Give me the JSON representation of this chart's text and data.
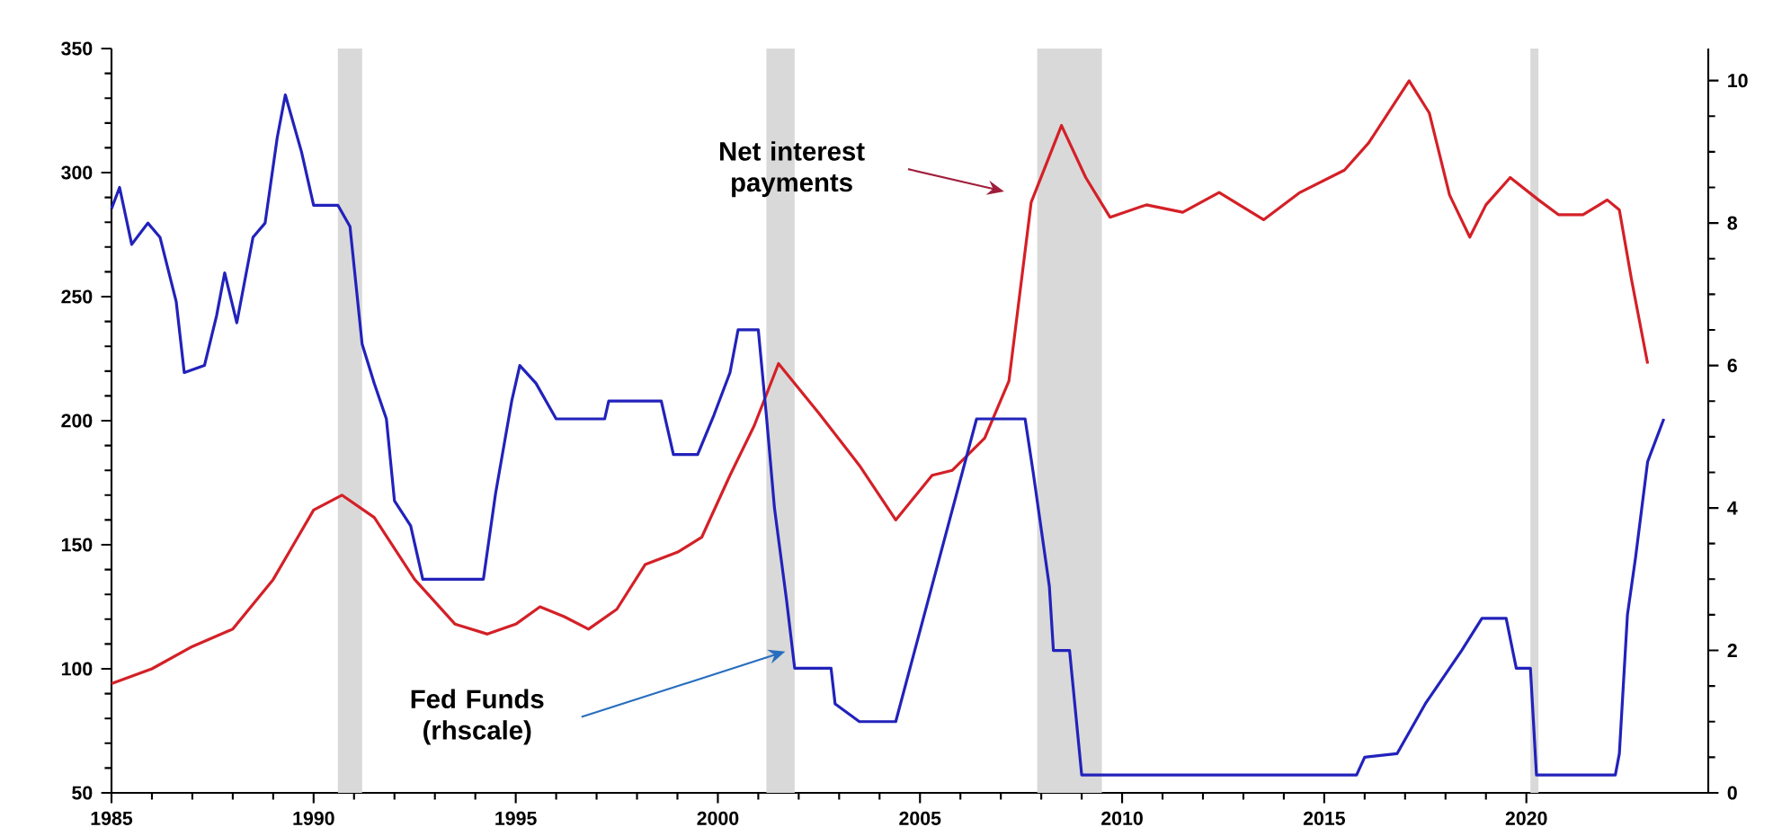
{
  "chart_data": {
    "type": "line",
    "xlim": [
      1985,
      2024.5
    ],
    "xticks": [
      1985,
      1990,
      1995,
      2000,
      2005,
      2010,
      2015,
      2020
    ],
    "ylim": [
      50,
      350
    ],
    "yticks": [
      50,
      100,
      150,
      200,
      250,
      300,
      350
    ],
    "y2lim": [
      0,
      10.45
    ],
    "y2ticks": [
      0,
      2,
      4,
      6,
      8,
      10
    ],
    "bands": [
      {
        "axis": "x",
        "from": 1990.6,
        "to": 1991.2,
        "color": "#d9d9d9"
      },
      {
        "axis": "x",
        "from": 2001.2,
        "to": 2001.9,
        "color": "#d9d9d9"
      },
      {
        "axis": "x",
        "from": 2007.9,
        "to": 2009.5,
        "color": "#d9d9d9"
      },
      {
        "axis": "x",
        "from": 2020.1,
        "to": 2020.3,
        "color": "#d9d9d9"
      }
    ],
    "series": [
      {
        "color": "#d42027",
        "x": [
          1985,
          1986,
          1987,
          1988,
          1989,
          1989.5,
          1990,
          1990.7,
          1991.5,
          1992.5,
          1993.5,
          1994.3,
          1995,
          1995.6,
          1996.2,
          1996.8,
          1997.5,
          1998.2,
          1999,
          1999.6,
          2000.3,
          2000.9,
          2001.5,
          2002.5,
          2003.5,
          2004.4,
          2005.3,
          2005.8,
          2006.6,
          2007.2,
          2007.75,
          2008.5,
          2009.1,
          2009.7,
          2010.6,
          2011.5,
          2012.4,
          2013.5,
          2014.4,
          2015.5,
          2016.1,
          2017.1,
          2017.6,
          2018.1,
          2018.6,
          2019.0,
          2019.6,
          2020.3,
          2020.8,
          2021.4,
          2022.0,
          2022.3,
          2022.6,
          2023.0
        ],
        "values": [
          94,
          100,
          109,
          116,
          136,
          150,
          164,
          170,
          161,
          136,
          118,
          114,
          118,
          125,
          121,
          116,
          124,
          142,
          147,
          153,
          178,
          198,
          223,
          203,
          182,
          160,
          178,
          180,
          193,
          216,
          288,
          319,
          298,
          282,
          287,
          284,
          292,
          281,
          292,
          301,
          312,
          337,
          324,
          291,
          274,
          287,
          298,
          289,
          283,
          283,
          289,
          285,
          257,
          223
        ]
      },
      {
        "color": "#2222bb",
        "axis": "y2",
        "x": [
          1985,
          1985.2,
          1985.5,
          1985.9,
          1986.2,
          1986.6,
          1986.8,
          1987.3,
          1987.6,
          1987.8,
          1988.1,
          1988.5,
          1988.8,
          1989.1,
          1989.3,
          1989.7,
          1990.0,
          1990.6,
          1990.9,
          1991.2,
          1991.5,
          1991.8,
          1992.0,
          1992.4,
          1992.7,
          1994.2,
          1994.5,
          1994.9,
          1995.1,
          1995.5,
          1996.0,
          1997.2,
          1997.3,
          1998.6,
          1998.9,
          1999.5,
          1999.9,
          2000.3,
          2000.5,
          2001.0,
          2001.2,
          2001.4,
          2001.7,
          2001.9,
          2002.8,
          2002.9,
          2003.5,
          2004.4,
          2006.4,
          2007.6,
          2007.8,
          2008.2,
          2008.3,
          2008.7,
          2009.0,
          2015.8,
          2016.0,
          2016.8,
          2017.5,
          2018.4,
          2018.9,
          2019.5,
          2019.75,
          2020.1,
          2020.25,
          2022.2,
          2022.3,
          2022.5,
          2022.7,
          2023.0,
          2023.4
        ],
        "values": [
          8.2,
          8.5,
          7.7,
          8.0,
          7.8,
          6.9,
          5.9,
          6.0,
          6.7,
          7.3,
          6.6,
          7.8,
          8.0,
          9.2,
          9.8,
          9.0,
          8.25,
          8.25,
          7.95,
          6.3,
          5.75,
          5.25,
          4.1,
          3.75,
          3.0,
          3.0,
          4.2,
          5.5,
          6.0,
          5.75,
          5.25,
          5.25,
          5.5,
          5.5,
          4.75,
          4.75,
          5.3,
          5.9,
          6.5,
          6.5,
          5.3,
          4.0,
          2.7,
          1.75,
          1.75,
          1.25,
          1.0,
          1.0,
          5.25,
          5.25,
          4.5,
          2.9,
          2.0,
          2.0,
          0.25,
          0.25,
          0.5,
          0.55,
          1.25,
          2.0,
          2.45,
          2.45,
          1.75,
          1.75,
          0.25,
          0.25,
          0.55,
          2.5,
          3.3,
          4.65,
          5.25
        ]
      }
    ],
    "annotations": [
      "Net interest payments",
      "Fed Funds (rhscale)"
    ]
  }
}
